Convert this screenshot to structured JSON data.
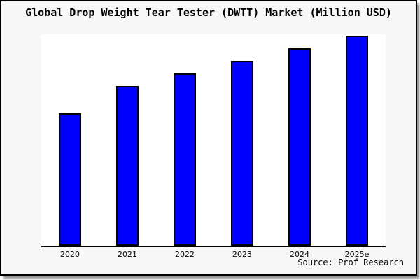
{
  "chart_data": {
    "type": "bar",
    "title": "Global Drop Weight Tear Tester (DWTT) Market (Million USD)",
    "categories": [
      "2020",
      "2021",
      "2022",
      "2023",
      "2024",
      "2025e"
    ],
    "values": [
      63,
      76,
      82,
      88,
      94,
      100
    ],
    "value_note": "y-axis is unlabeled in the chart; values are relative estimates from bar heights with 2025e = 100",
    "xlabel": "",
    "ylabel": "",
    "ylim": [
      0,
      101
    ],
    "grid": false,
    "legend": null,
    "colors": {
      "bar_fill": "#0000ff",
      "bar_border": "#000000",
      "card_background": "#f7f7f7",
      "plot_background": "#ffffff",
      "axis_line": "#000000",
      "text": "#000000"
    }
  },
  "source": {
    "text": "Source: Prof Research"
  }
}
